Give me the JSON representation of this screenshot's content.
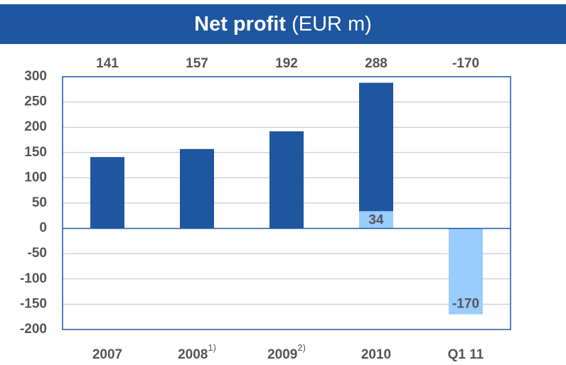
{
  "chart_data": {
    "type": "bar",
    "stacked": true,
    "title": "Net profit",
    "subtitle": "(EUR m)",
    "categories": [
      "2007",
      "2008",
      "2009",
      "2010",
      "Q1 11"
    ],
    "footnotes": [
      null,
      "1)",
      "2)",
      null,
      null
    ],
    "totals": [
      141,
      157,
      192,
      288,
      -170
    ],
    "series": [
      {
        "color": "#99ccff",
        "values": [
          null,
          null,
          null,
          34,
          -170
        ],
        "show_labels": true
      },
      {
        "color": "#1f56a0",
        "values": [
          141,
          157,
          192,
          254,
          null
        ],
        "show_labels": false
      }
    ],
    "ylim": [
      -200,
      300
    ],
    "yticks": [
      -200,
      -150,
      -100,
      -50,
      0,
      50,
      100,
      150,
      200,
      250,
      300
    ],
    "grid": true
  }
}
